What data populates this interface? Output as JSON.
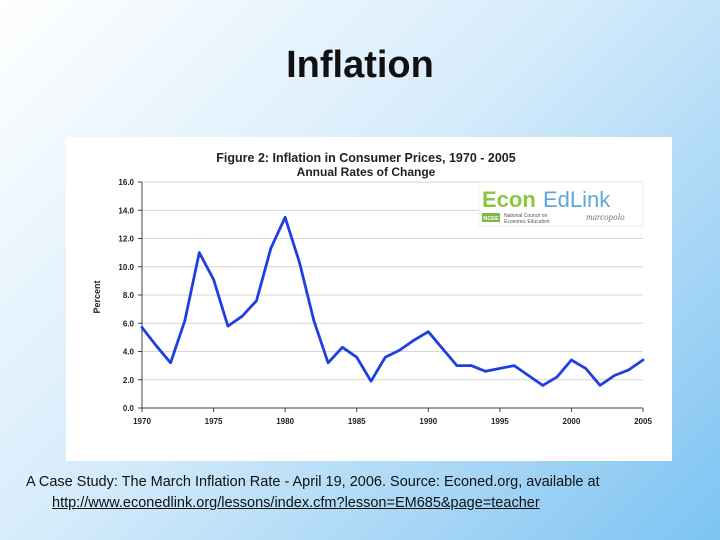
{
  "slide": {
    "title": "Inflation",
    "caption_text": "A Case Study: The March Inflation Rate - April 19, 2006.   Source: Econed.org, available at",
    "caption_link": "http://www.econedlink.org/lessons/index.cfm?lesson=EM685&page=teacher"
  },
  "logo": {
    "brand_left": "Econ",
    "brand_right": "EdLink",
    "sub_line1": "National Council on",
    "sub_line2": "Economic Education",
    "partner": "marcopolo",
    "badge": "NCEE"
  },
  "chart_data": {
    "type": "line",
    "title": "Figure 2: Inflation in Consumer Prices, 1970 - 2005",
    "subtitle": "Annual Rates of Change",
    "xlabel": "",
    "ylabel": "Percent",
    "xlim": [
      1970,
      2005
    ],
    "ylim": [
      0,
      16
    ],
    "x_ticks": [
      1970,
      1975,
      1980,
      1985,
      1990,
      1995,
      2000,
      2005
    ],
    "x_tick_labels": [
      "1970",
      "1975",
      "1980",
      "1985",
      "1990",
      "1995",
      "2000",
      "2005"
    ],
    "y_ticks": [
      0,
      2,
      4,
      6,
      8,
      10,
      12,
      14,
      16
    ],
    "y_tick_labels": [
      "0.0",
      "2.0",
      "4.0",
      "6.0",
      "8.0",
      "10.0",
      "12.0",
      "14.0",
      "16.0"
    ],
    "grid": "horizontal",
    "line_color": "#1f3fe0",
    "series": [
      {
        "x": [
          1970,
          1971,
          1972,
          1973,
          1974,
          1975,
          1976,
          1977,
          1978,
          1979,
          1980,
          1981,
          1982,
          1983,
          1984,
          1985,
          1986,
          1987,
          1988,
          1989,
          1990,
          1991,
          1992,
          1993,
          1994,
          1995,
          1996,
          1997,
          1998,
          1999,
          2000,
          2001,
          2002,
          2003,
          2004,
          2005
        ],
        "values": [
          5.7,
          4.4,
          3.2,
          6.2,
          11.0,
          9.1,
          5.8,
          6.5,
          7.6,
          11.3,
          13.5,
          10.3,
          6.2,
          3.2,
          4.3,
          3.6,
          1.9,
          3.6,
          4.1,
          4.8,
          5.4,
          4.2,
          3.0,
          3.0,
          2.6,
          2.8,
          3.0,
          2.3,
          1.6,
          2.2,
          3.4,
          2.8,
          1.6,
          2.3,
          2.7,
          3.4
        ]
      }
    ]
  }
}
